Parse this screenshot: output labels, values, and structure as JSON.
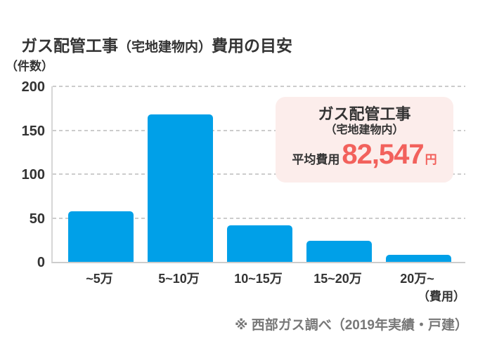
{
  "page_title": {
    "part1": "ガス配管工事",
    "part2": "（宅地建物内）",
    "part3": "費用の目安"
  },
  "chart_data": {
    "type": "bar",
    "title": "ガス配管工事（宅地建物内）費用の目安",
    "y_unit_label": "（件数）",
    "x_unit_label": "（費用）",
    "categories": [
      "~5万",
      "5~10万",
      "10~15万",
      "15~20万",
      "20万~"
    ],
    "values": [
      58,
      168,
      42,
      24,
      8
    ],
    "ylim": [
      0,
      200
    ],
    "yticks": [
      0,
      50,
      100,
      150,
      200
    ],
    "grid": "horizontal-dashed",
    "legend": "none",
    "bar_color": "#00A0E8",
    "grid_color": "#cccccc"
  },
  "callout": {
    "title": "ガス配管工事",
    "subtitle": "（宅地建物内）",
    "average_label": "平均費用",
    "average_value": "82,547",
    "currency_suffix": "円",
    "bg_color": "#FCEDEB",
    "accent_color": "#F2615C"
  },
  "footnote": "※ 西部ガス調べ（2019年実績・戸建）"
}
